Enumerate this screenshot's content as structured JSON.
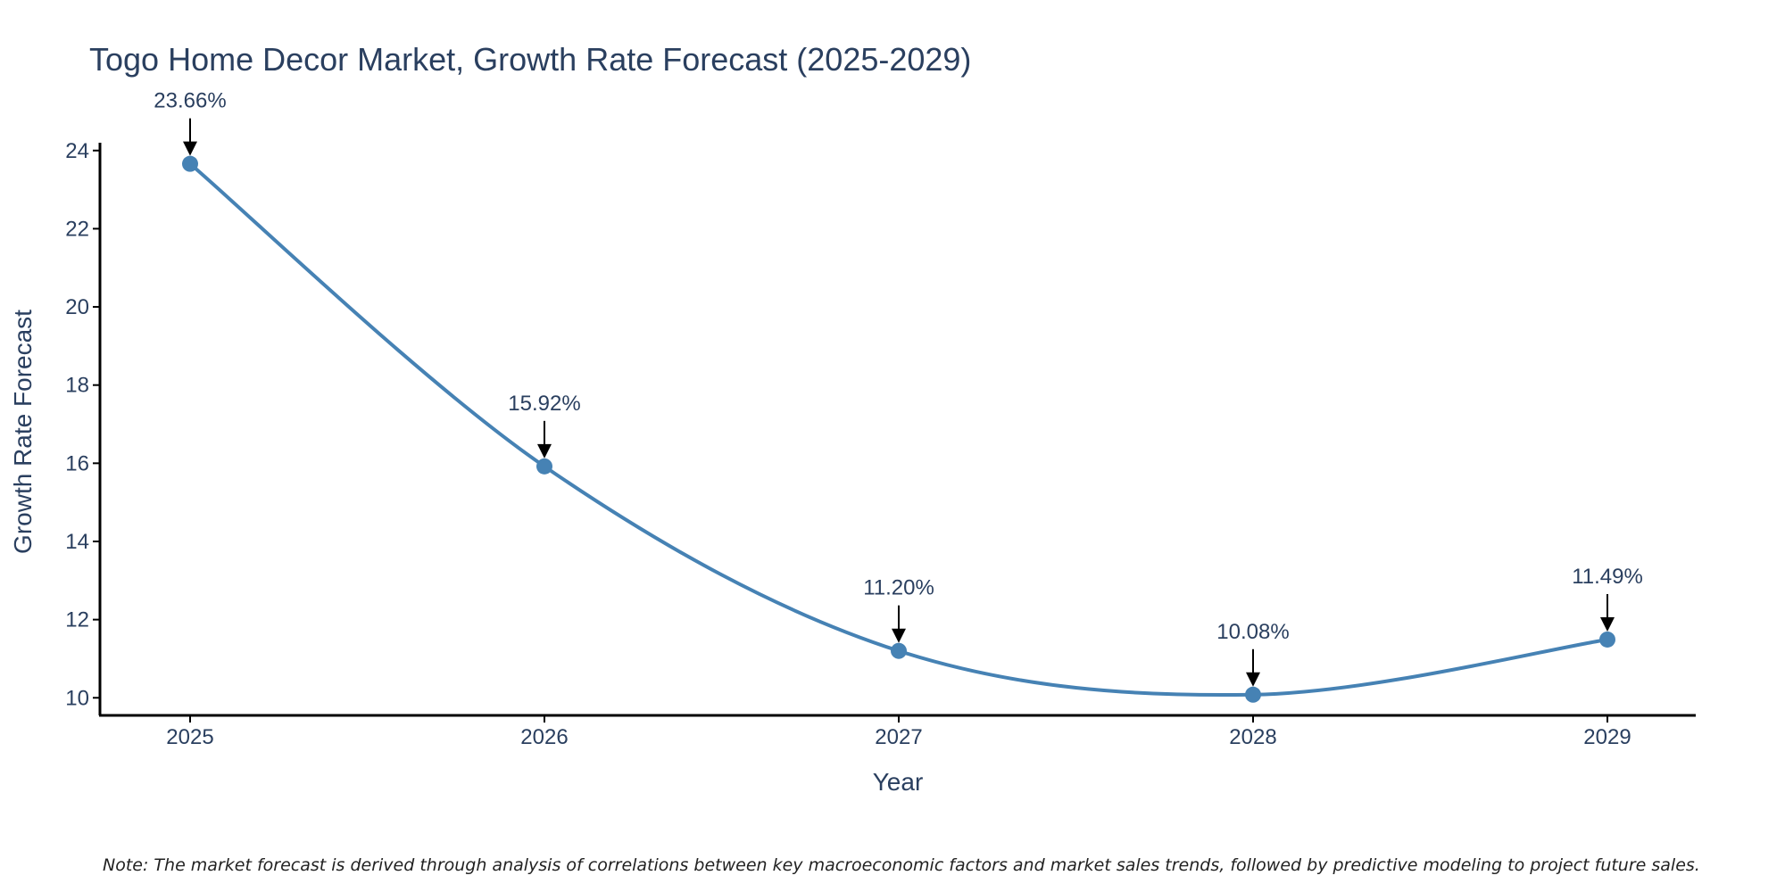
{
  "chart_data": {
    "type": "line",
    "title": "Togo Home Decor Market, Growth Rate Forecast (2025-2029)",
    "xlabel": "Year",
    "ylabel": "Growth Rate Forecast",
    "x": [
      "2025",
      "2026",
      "2027",
      "2028",
      "2029"
    ],
    "series": [
      {
        "name": "Growth Rate Forecast",
        "values": [
          23.66,
          15.92,
          11.2,
          10.08,
          11.49
        ],
        "labels": [
          "23.66%",
          "15.92%",
          "11.20%",
          "10.08%",
          "11.49%"
        ]
      }
    ],
    "yticks": [
      10,
      12,
      14,
      16,
      18,
      20,
      22,
      24
    ],
    "ylim": [
      9.55,
      24.2
    ],
    "grid": false,
    "line_style": "spline",
    "colors": {
      "line": "#4682b4",
      "marker": "#4682b4",
      "axis": "#000000",
      "arrow": "#000000",
      "text": "#2a3f5f"
    }
  },
  "note": "Note: The market forecast is derived through analysis of correlations between key macroeconomic factors and market sales trends, followed by predictive modeling to project future sales."
}
